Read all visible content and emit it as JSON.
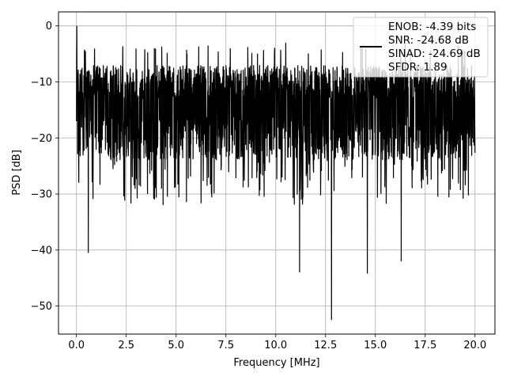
{
  "chart_data": {
    "type": "line",
    "xlabel": "Frequency [MHz]",
    "ylabel": "PSD [dB]",
    "xlim": [
      -0.9,
      21.0
    ],
    "ylim": [
      -55,
      2.5
    ],
    "x_ticks": [
      0.0,
      2.5,
      5.0,
      7.5,
      10.0,
      12.5,
      15.0,
      17.5,
      20.0
    ],
    "x_tick_labels": [
      "0.0",
      "2.5",
      "5.0",
      "7.5",
      "10.0",
      "12.5",
      "15.0",
      "17.5",
      "20.0"
    ],
    "y_ticks": [
      0,
      -10,
      -20,
      -30,
      -40,
      -50
    ],
    "y_tick_labels": [
      "0",
      "−10",
      "−20",
      "−30",
      "−40",
      "−50"
    ],
    "grid": true,
    "legend_position": "top-right",
    "line_color": "#000000",
    "legend": {
      "line_color": "#000000",
      "entries": [
        "ENOB: -4.39 bits",
        "SNR: -24.68 dB",
        "SINAD: -24.69 dB",
        "SFDR: 1.89"
      ]
    },
    "series": [
      {
        "x_range": [
          0.0,
          20.0
        ],
        "num_points": 2048,
        "peak": {
          "x": 0.02,
          "y": 0.0
        },
        "typical_top": -7,
        "typical_bottom": -24,
        "notable_dips": [
          {
            "x": 0.6,
            "y": -40.5
          },
          {
            "x": 11.2,
            "y": -44.0
          },
          {
            "x": 12.8,
            "y": -52.5
          },
          {
            "x": 14.6,
            "y": -44.2
          },
          {
            "x": 16.3,
            "y": -42.0
          }
        ],
        "notable_peaks": [
          {
            "x": 6.6,
            "y": -3.5
          },
          {
            "x": 10.5,
            "y": -3.0
          },
          {
            "x": 16.5,
            "y": -3.2
          }
        ]
      }
    ]
  }
}
